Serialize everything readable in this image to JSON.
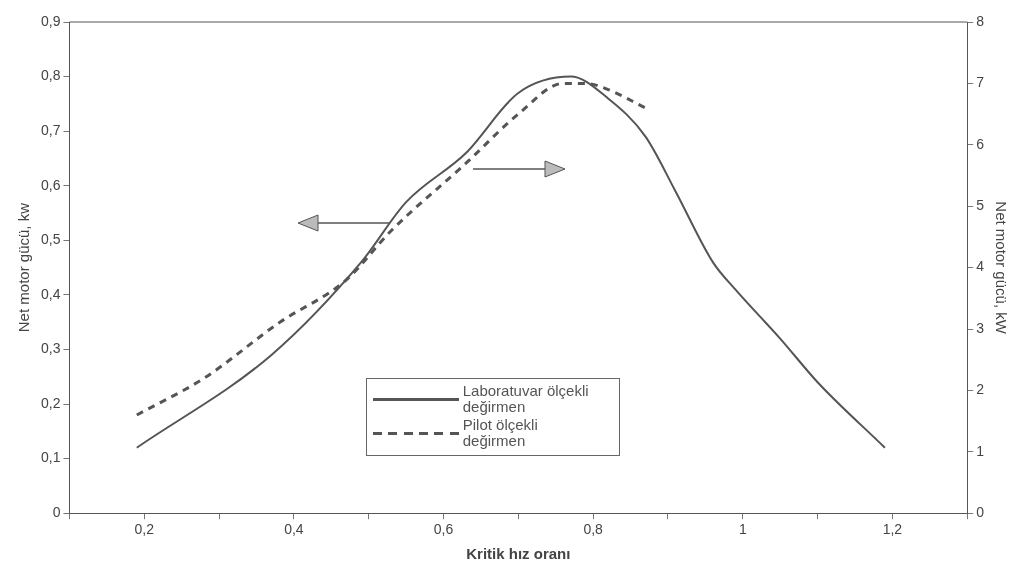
{
  "chart_data": {
    "type": "line",
    "xlabel": "Kritik hız oranı",
    "ylabel": "Net motor gücü, kw",
    "y2label": "Net motor gücü, kW",
    "xlim": [
      0.1,
      1.3
    ],
    "xticks": [
      {
        "value": 0.1,
        "label": null
      },
      {
        "value": 0.2,
        "label": "0,2"
      },
      {
        "value": 0.3,
        "label": null
      },
      {
        "value": 0.4,
        "label": "0,4"
      },
      {
        "value": 0.5,
        "label": null
      },
      {
        "value": 0.6,
        "label": "0,6"
      },
      {
        "value": 0.7,
        "label": null
      },
      {
        "value": 0.8,
        "label": "0,8"
      },
      {
        "value": 0.9,
        "label": null
      },
      {
        "value": 1,
        "label": "1"
      },
      {
        "value": 1.1,
        "label": null
      },
      {
        "value": 1.2,
        "label": "1,2"
      },
      {
        "value": 1.3,
        "label": null
      }
    ],
    "ylim": [
      0,
      0.9
    ],
    "yticks": [
      0,
      {
        "value": 0.1,
        "label": "0,1"
      },
      {
        "value": 0.2,
        "label": "0,2"
      },
      {
        "value": 0.3,
        "label": "0,3"
      },
      {
        "value": 0.4,
        "label": "0,4"
      },
      {
        "value": 0.5,
        "label": "0,5"
      },
      {
        "value": 0.6,
        "label": "0,6"
      },
      {
        "value": 0.7,
        "label": "0,7"
      },
      {
        "value": 0.8,
        "label": "0,8"
      },
      {
        "value": 0.9,
        "label": "0,9"
      }
    ],
    "y2lim": [
      0,
      8
    ],
    "y2ticks": [
      0,
      1,
      2,
      3,
      4,
      5,
      6,
      7,
      8
    ],
    "grid": false,
    "legend": "bottom",
    "marker": "none",
    "series": [
      {
        "name": "Laboratuvar ölçekli değirmen",
        "color": "#555555",
        "line_style": "solid",
        "x": [
          0.19,
          0.37,
          0.49,
          0.55,
          0.63,
          0.7,
          0.77,
          0.82,
          0.87,
          0.91,
          0.96,
          0.99,
          1.05,
          1.1,
          1.19
        ],
        "values": [
          0.12,
          0.29,
          0.46,
          0.57,
          0.66,
          0.77,
          0.8,
          0.76,
          0.69,
          0.59,
          0.46,
          0.41,
          0.32,
          0.24,
          0.12
        ]
      },
      {
        "name": "Pilot ölçekli değirmen",
        "color": "#555555",
        "line_style": "dashed",
        "axis": "y2",
        "x": [
          0.19,
          0.28,
          0.38,
          0.47,
          0.53,
          0.63,
          0.7,
          0.76,
          0.79,
          0.82,
          0.87
        ],
        "values": [
          1.6,
          2.2,
          3.1,
          3.8,
          4.6,
          5.7,
          6.5,
          7.0,
          7.0,
          6.9,
          6.6
        ]
      }
    ]
  }
}
